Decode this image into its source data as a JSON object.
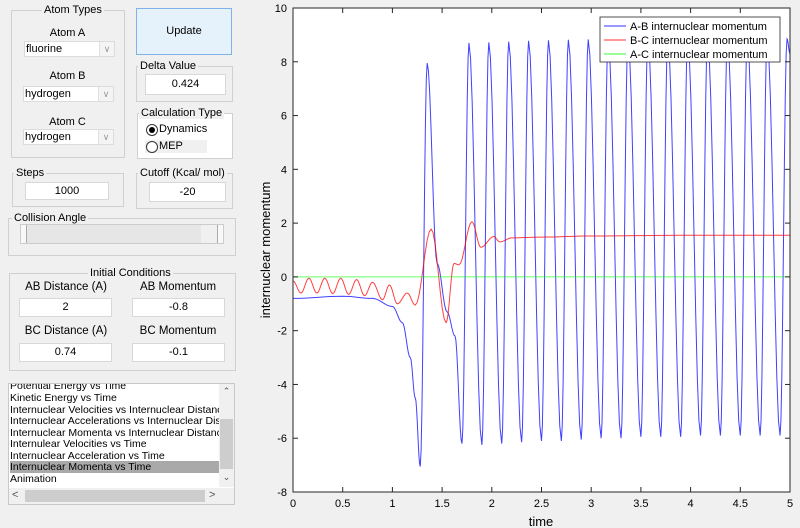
{
  "atom_types": {
    "title": "Atom Types",
    "atom_a": {
      "label": "Atom A",
      "value": "fluorine"
    },
    "atom_b": {
      "label": "Atom B",
      "value": "hydrogen"
    },
    "atom_c": {
      "label": "Atom C",
      "value": "hydrogen"
    }
  },
  "update_label": "Update",
  "delta": {
    "title": "Delta Value",
    "value": "0.424"
  },
  "calc_type": {
    "title": "Calculation Type",
    "options": [
      "Dynamics",
      "MEP"
    ],
    "selected": "Dynamics"
  },
  "steps": {
    "title": "Steps",
    "value": "1000"
  },
  "cutoff": {
    "title": "Cutoff (Kcal/ mol)",
    "value": "-20"
  },
  "collision_angle": {
    "title": "Collision Angle"
  },
  "initial_conditions": {
    "title": "Initial Conditions",
    "ab_distance": {
      "label": "AB Distance (A)",
      "value": "2"
    },
    "ab_momentum": {
      "label": "AB Momentum",
      "value": "-0.8"
    },
    "bc_distance": {
      "label": "BC Distance (A)",
      "value": "0.74"
    },
    "bc_momentum": {
      "label": "BC Momentum",
      "value": "-0.1"
    }
  },
  "plot_list": {
    "items": [
      "Potential Energy vs Time",
      "Kinetic Energy vs Time",
      "Internuclear Velocities vs Internuclear Distance",
      "Internuclear Accelerations vs Internuclear Distance",
      "Internuclear Momenta vs Internuclear Distance",
      "Internulear Velocities vs Time",
      "Internuclear Acceleration vs Time",
      "Internuclear Momenta vs Time",
      "Animation"
    ],
    "selected_index": 7
  },
  "chart_data": {
    "type": "line",
    "xlabel": "time",
    "ylabel": "internuclear momentum",
    "xlim": [
      0,
      5
    ],
    "ylim": [
      -8,
      10
    ],
    "xticks": [
      "0",
      "0.5",
      "1",
      "1.5",
      "2",
      "2.5",
      "3",
      "3.5",
      "4",
      "4.5",
      "5"
    ],
    "yticks": [
      "-8",
      "-6",
      "-4",
      "-2",
      "0",
      "2",
      "4",
      "6",
      "8",
      "10"
    ],
    "legend_position": "top-right",
    "series": [
      {
        "name": "A-B internuclear momentum",
        "color": "#0000ff",
        "points": [
          [
            0,
            -0.8
          ],
          [
            0.5,
            -0.72
          ],
          [
            0.8,
            -0.8
          ],
          [
            1.0,
            -1.1
          ],
          [
            1.1,
            -1.7
          ],
          [
            1.18,
            -3
          ],
          [
            1.23,
            -4.5
          ],
          [
            1.28,
            -7.05
          ],
          [
            1.35,
            7.95
          ],
          [
            1.45,
            0.5
          ],
          [
            1.55,
            -1.3
          ],
          [
            1.63,
            -2.2
          ],
          [
            1.7,
            -6.2
          ],
          [
            1.77,
            8.7
          ],
          [
            1.9,
            -6.25
          ],
          [
            1.97,
            8.72
          ],
          [
            2.1,
            -6.2
          ],
          [
            2.17,
            8.75
          ],
          [
            2.3,
            -6.15
          ],
          [
            2.37,
            8.78
          ],
          [
            2.5,
            -6.1
          ],
          [
            2.57,
            8.8
          ],
          [
            2.7,
            -6.1
          ],
          [
            2.77,
            8.82
          ],
          [
            2.9,
            -6.05
          ],
          [
            2.97,
            8.83
          ],
          [
            3.1,
            -6.0
          ],
          [
            3.17,
            8.84
          ],
          [
            3.3,
            -6.0
          ],
          [
            3.37,
            8.85
          ],
          [
            3.5,
            -5.95
          ],
          [
            3.57,
            8.85
          ],
          [
            3.7,
            -5.95
          ],
          [
            3.77,
            8.85
          ],
          [
            3.9,
            -5.95
          ],
          [
            3.97,
            8.85
          ],
          [
            4.1,
            -5.9
          ],
          [
            4.17,
            8.85
          ],
          [
            4.3,
            -5.9
          ],
          [
            4.37,
            8.85
          ],
          [
            4.5,
            -5.9
          ],
          [
            4.57,
            8.85
          ],
          [
            4.7,
            -5.9
          ],
          [
            4.77,
            8.85
          ],
          [
            4.9,
            -5.9
          ],
          [
            4.97,
            8.85
          ],
          [
            5.0,
            8.3
          ]
        ]
      },
      {
        "name": "B-C internuclear momentum",
        "color": "#ff0000",
        "points": [
          [
            0,
            -0.15
          ],
          [
            0.08,
            -0.6
          ],
          [
            0.16,
            -0.05
          ],
          [
            0.24,
            -0.6
          ],
          [
            0.32,
            -0.05
          ],
          [
            0.4,
            -0.62
          ],
          [
            0.48,
            -0.05
          ],
          [
            0.56,
            -0.65
          ],
          [
            0.64,
            -0.1
          ],
          [
            0.72,
            -0.7
          ],
          [
            0.8,
            -0.2
          ],
          [
            0.9,
            -0.85
          ],
          [
            0.97,
            -0.3
          ],
          [
            1.05,
            -1.0
          ],
          [
            1.15,
            -0.6
          ],
          [
            1.23,
            -1.05
          ],
          [
            1.39,
            1.78
          ],
          [
            1.54,
            -1.7
          ],
          [
            1.62,
            0.5
          ],
          [
            1.67,
            0.45
          ],
          [
            1.8,
            2.05
          ],
          [
            1.89,
            1.1
          ],
          [
            2.02,
            1.5
          ],
          [
            2.08,
            1.3
          ],
          [
            2.2,
            1.45
          ],
          [
            2.5,
            1.48
          ],
          [
            3,
            1.52
          ],
          [
            4,
            1.55
          ],
          [
            5,
            1.55
          ]
        ]
      },
      {
        "name": "A-C internuclear momentum",
        "color": "#00ff00",
        "points": [
          [
            0,
            0
          ],
          [
            5,
            0
          ]
        ]
      }
    ]
  }
}
